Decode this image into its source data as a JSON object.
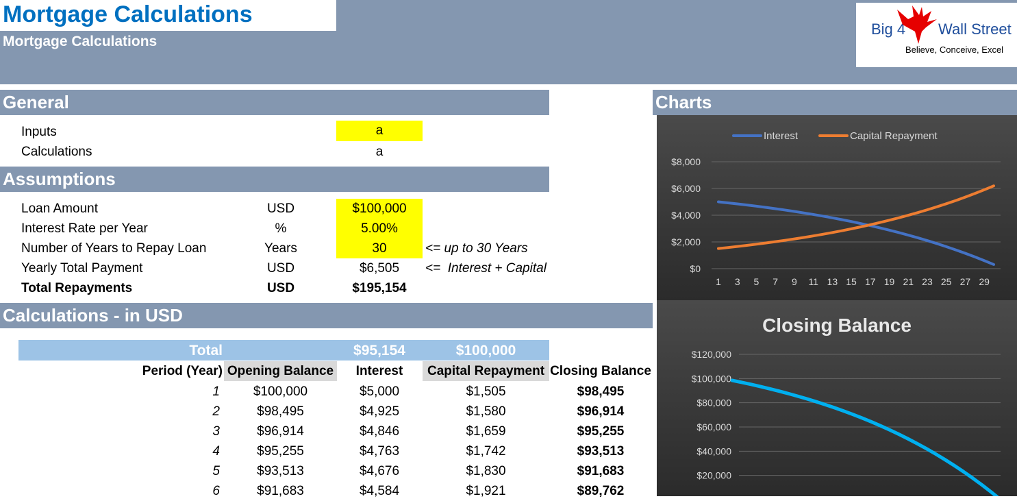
{
  "header": {
    "title": "Mortgage Calculations",
    "subtitle": "Mortgage Calculations",
    "logo_left": "Big 4",
    "logo_right": "Wall Street",
    "logo_tagline": "Believe, Conceive, Excel"
  },
  "general": {
    "heading": "General",
    "rows": [
      {
        "label": "Inputs",
        "value": "a"
      },
      {
        "label": "Calculations",
        "value": "a"
      }
    ]
  },
  "assumptions": {
    "heading": "Assumptions",
    "rows": [
      {
        "label": "Loan Amount",
        "unit": "USD",
        "value": "$100,000",
        "note": ""
      },
      {
        "label": "Interest Rate per Year",
        "unit": "%",
        "value": "5.00%",
        "note": ""
      },
      {
        "label": "Number of Years to Repay Loan",
        "unit": "Years",
        "value": "30",
        "note": "<= up to 30 Years"
      },
      {
        "label": "Yearly Total Payment",
        "unit": "USD",
        "value": "$6,505",
        "note": "<=  Interest + Capital"
      },
      {
        "label": "Total Repayments",
        "unit": "USD",
        "value": "$195,154",
        "note": ""
      }
    ]
  },
  "calculations": {
    "heading": "Calculations - in USD",
    "total_label": "Total",
    "total_interest": "$95,154",
    "total_capital": "$100,000",
    "columns": [
      "Period (Year)",
      "Opening Balance",
      "Interest",
      "Capital Repayment",
      "Closing Balance"
    ],
    "rows": [
      [
        "1",
        "$100,000",
        "$5,000",
        "$1,505",
        "$98,495"
      ],
      [
        "2",
        "$98,495",
        "$4,925",
        "$1,580",
        "$96,914"
      ],
      [
        "3",
        "$96,914",
        "$4,846",
        "$1,659",
        "$95,255"
      ],
      [
        "4",
        "$95,255",
        "$4,763",
        "$1,742",
        "$93,513"
      ],
      [
        "5",
        "$93,513",
        "$4,676",
        "$1,830",
        "$91,683"
      ],
      [
        "6",
        "$91,683",
        "$4,584",
        "$1,921",
        "$89,762"
      ]
    ]
  },
  "charts_heading": "Charts",
  "chart_data": [
    {
      "type": "line",
      "title": "",
      "x": [
        1,
        2,
        3,
        4,
        5,
        6,
        7,
        8,
        9,
        10,
        11,
        12,
        13,
        14,
        15,
        16,
        17,
        18,
        19,
        20,
        21,
        22,
        23,
        24,
        25,
        26,
        27,
        28,
        29,
        30
      ],
      "x_tick_labels": [
        "1",
        "3",
        "5",
        "7",
        "9",
        "11",
        "13",
        "15",
        "17",
        "19",
        "21",
        "23",
        "25",
        "27",
        "29"
      ],
      "series": [
        {
          "name": "Interest",
          "color": "#4472c4",
          "values": [
            5000,
            4925,
            4846,
            4763,
            4676,
            4584,
            4488,
            4388,
            4282,
            4171,
            4054,
            3932,
            3803,
            3668,
            3527,
            3377,
            3221,
            3056,
            2883,
            2702,
            2511,
            2311,
            2100,
            1880,
            1649,
            1406,
            1151,
            884,
            603,
            310
          ]
        },
        {
          "name": "Capital Repayment",
          "color": "#ed7d31",
          "values": [
            1505,
            1580,
            1659,
            1742,
            1830,
            1921,
            2017,
            2118,
            2224,
            2335,
            2452,
            2574,
            2703,
            2838,
            2980,
            3129,
            3286,
            3450,
            3623,
            3804,
            3994,
            4194,
            4403,
            4624,
            4855,
            5098,
            5352,
            5620,
            5901,
            6196
          ]
        }
      ],
      "ylim": [
        0,
        8000
      ],
      "y_ticks": [
        "$0",
        "$2,000",
        "$4,000",
        "$6,000",
        "$8,000"
      ],
      "legend": "top",
      "grid": true
    },
    {
      "type": "line",
      "title": "Closing Balance",
      "x": [
        1,
        2,
        3,
        4,
        5,
        6,
        7,
        8,
        9,
        10,
        11,
        12,
        13,
        14,
        15,
        16,
        17,
        18,
        19,
        20,
        21,
        22,
        23,
        24,
        25,
        26,
        27,
        28,
        29,
        30
      ],
      "series": [
        {
          "name": "",
          "color": "#00b0f0",
          "values": [
            98495,
            96914,
            95255,
            93513,
            91683,
            89762,
            87745,
            85627,
            83403,
            81068,
            78616,
            76042,
            73339,
            70501,
            67521,
            64392,
            61106,
            57656,
            54033,
            50229,
            46235,
            42041,
            37638,
            33014,
            28159,
            23061,
            17709,
            12089,
            6188,
            0
          ]
        }
      ],
      "ylim": [
        0,
        120000
      ],
      "y_ticks": [
        "$20,000",
        "$40,000",
        "$60,000",
        "$80,000",
        "$100,000",
        "$120,000"
      ],
      "grid": true
    }
  ]
}
